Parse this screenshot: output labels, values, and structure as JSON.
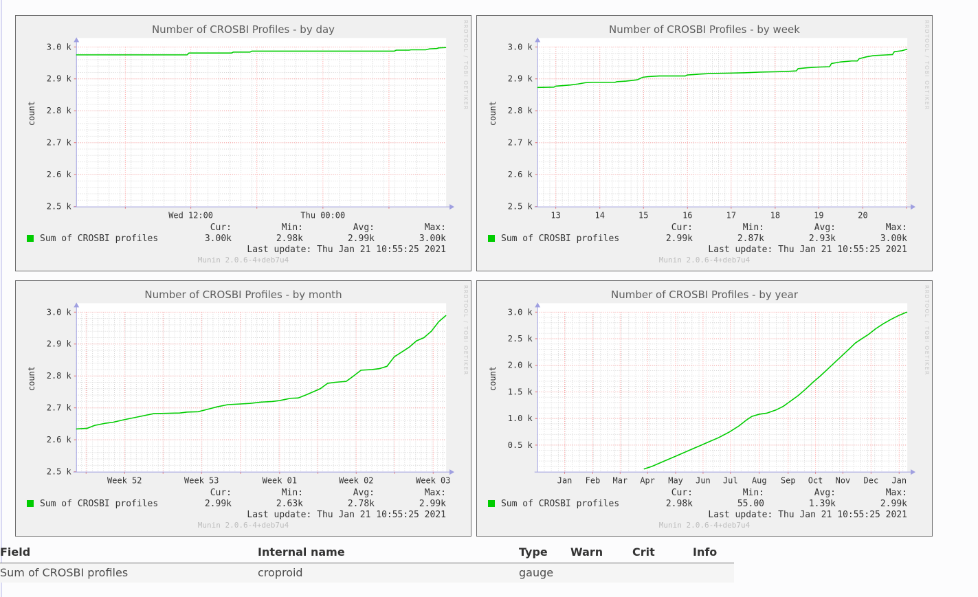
{
  "page": {
    "background": "#fcfcfd",
    "accent_green": "#00cc00",
    "grid_red": "#ff9b9b",
    "grid_gray": "#d4d4d4",
    "axis_color": "#9f9fe0",
    "link_blue": "#3b6ea5"
  },
  "legend_headers": [
    "Cur:",
    "Min:",
    "Avg:",
    "Max:"
  ],
  "chart_data": [
    {
      "type": "line",
      "id": "by-day",
      "title": "Number of CROSBI Profiles - by day",
      "ylabel": "count",
      "watermark": "RRDTOOL / TOBI OETIKER",
      "footer": "Munin 2.0.6-4+deb7u4",
      "ylim": [
        2.5,
        3.0
      ],
      "y_ticks": [
        {
          "v": 3.0,
          "label": "3.0 k"
        },
        {
          "v": 2.9,
          "label": "2.9 k"
        },
        {
          "v": 2.8,
          "label": "2.8 k"
        },
        {
          "v": 2.7,
          "label": "2.7 k"
        },
        {
          "v": 2.6,
          "label": "2.6 k"
        },
        {
          "v": 2.5,
          "label": "2.5 k"
        }
      ],
      "y_minor_step": 0.02,
      "x_ticks": [
        {
          "f": 0.31,
          "label": "Wed 12:00"
        },
        {
          "f": 0.667,
          "label": "Thu 00:00"
        }
      ],
      "x_grid": [
        0.133,
        0.31,
        0.4885,
        0.667,
        0.8455
      ],
      "x_minor_step": 0.0297,
      "series": [
        {
          "name": "Sum of CROSBI profiles",
          "color": "#00cc00",
          "points": [
            [
              0,
              2.975
            ],
            [
              0.3,
              2.975
            ],
            [
              0.305,
              2.981
            ],
            [
              0.42,
              2.981
            ],
            [
              0.425,
              2.984
            ],
            [
              0.47,
              2.984
            ],
            [
              0.475,
              2.987
            ],
            [
              0.86,
              2.987
            ],
            [
              0.865,
              2.99
            ],
            [
              0.9,
              2.99
            ],
            [
              0.905,
              2.991
            ],
            [
              0.945,
              2.991
            ],
            [
              0.955,
              2.994
            ],
            [
              0.975,
              2.995
            ],
            [
              0.98,
              2.997
            ],
            [
              1,
              2.998
            ]
          ]
        }
      ],
      "stats": {
        "cur": "3.00k",
        "min": "2.98k",
        "avg": "2.99k",
        "max": "3.00k"
      },
      "last_update": "Last update: Thu Jan 21 10:55:25 2021"
    },
    {
      "type": "line",
      "id": "by-week",
      "title": "Number of CROSBI Profiles - by week",
      "ylabel": "count",
      "watermark": "RRDTOOL / TOBI OETIKER",
      "footer": "Munin 2.0.6-4+deb7u4",
      "ylim": [
        2.5,
        3.0
      ],
      "y_ticks": [
        {
          "v": 3.0,
          "label": "3.0 k"
        },
        {
          "v": 2.9,
          "label": "2.9 k"
        },
        {
          "v": 2.8,
          "label": "2.8 k"
        },
        {
          "v": 2.7,
          "label": "2.7 k"
        },
        {
          "v": 2.6,
          "label": "2.6 k"
        },
        {
          "v": 2.5,
          "label": "2.5 k"
        }
      ],
      "y_minor_step": 0.02,
      "x_ticks": [
        {
          "f": 0.05,
          "label": "13"
        },
        {
          "f": 0.169,
          "label": "14"
        },
        {
          "f": 0.287,
          "label": "15"
        },
        {
          "f": 0.406,
          "label": "16"
        },
        {
          "f": 0.524,
          "label": "17"
        },
        {
          "f": 0.643,
          "label": "18"
        },
        {
          "f": 0.761,
          "label": "19"
        },
        {
          "f": 0.88,
          "label": "20"
        }
      ],
      "x_grid": [
        0.05,
        0.169,
        0.287,
        0.406,
        0.524,
        0.643,
        0.761,
        0.88,
        0.998
      ],
      "x_minor_step": 0.0169,
      "series": [
        {
          "name": "Sum of CROSBI profiles",
          "color": "#00cc00",
          "points": [
            [
              0,
              2.873
            ],
            [
              0.045,
              2.874
            ],
            [
              0.05,
              2.877
            ],
            [
              0.09,
              2.881
            ],
            [
              0.11,
              2.884
            ],
            [
              0.13,
              2.888
            ],
            [
              0.15,
              2.889
            ],
            [
              0.21,
              2.889
            ],
            [
              0.215,
              2.891
            ],
            [
              0.24,
              2.893
            ],
            [
              0.27,
              2.897
            ],
            [
              0.285,
              2.905
            ],
            [
              0.3,
              2.907
            ],
            [
              0.33,
              2.909
            ],
            [
              0.4,
              2.909
            ],
            [
              0.405,
              2.912
            ],
            [
              0.44,
              2.915
            ],
            [
              0.47,
              2.917
            ],
            [
              0.52,
              2.918
            ],
            [
              0.56,
              2.919
            ],
            [
              0.6,
              2.921
            ],
            [
              0.64,
              2.922
            ],
            [
              0.67,
              2.923
            ],
            [
              0.7,
              2.925
            ],
            [
              0.705,
              2.932
            ],
            [
              0.73,
              2.935
            ],
            [
              0.76,
              2.937
            ],
            [
              0.79,
              2.938
            ],
            [
              0.795,
              2.948
            ],
            [
              0.82,
              2.953
            ],
            [
              0.85,
              2.956
            ],
            [
              0.865,
              2.956
            ],
            [
              0.87,
              2.963
            ],
            [
              0.89,
              2.969
            ],
            [
              0.91,
              2.973
            ],
            [
              0.945,
              2.975
            ],
            [
              0.96,
              2.976
            ],
            [
              0.965,
              2.985
            ],
            [
              0.985,
              2.988
            ],
            [
              1,
              2.993
            ]
          ]
        }
      ],
      "stats": {
        "cur": "2.99k",
        "min": "2.87k",
        "avg": "2.93k",
        "max": "3.00k"
      },
      "last_update": "Last update: Thu Jan 21 10:55:25 2021"
    },
    {
      "type": "line",
      "id": "by-month",
      "title": "Number of CROSBI Profiles - by month",
      "ylabel": "count",
      "watermark": "RRDTOOL / TOBI OETIKER",
      "footer": "Munin 2.0.6-4+deb7u4",
      "ylim": [
        2.5,
        3.0
      ],
      "y_ticks": [
        {
          "v": 3.0,
          "label": "3.0 k"
        },
        {
          "v": 2.9,
          "label": "2.9 k"
        },
        {
          "v": 2.8,
          "label": "2.8 k"
        },
        {
          "v": 2.7,
          "label": "2.7 k"
        },
        {
          "v": 2.6,
          "label": "2.6 k"
        },
        {
          "v": 2.5,
          "label": "2.5 k"
        }
      ],
      "y_minor_step": 0.02,
      "x_ticks": [
        {
          "f": 0.131,
          "label": "Week 52"
        },
        {
          "f": 0.339,
          "label": "Week 53"
        },
        {
          "f": 0.55,
          "label": "Week 01"
        },
        {
          "f": 0.757,
          "label": "Week 02"
        },
        {
          "f": 0.965,
          "label": "Week 03"
        }
      ],
      "x_grid": [
        0.027,
        0.131,
        0.235,
        0.339,
        0.4445,
        0.55,
        0.6535,
        0.757,
        0.861,
        0.965
      ],
      "x_minor_step": 0.0148,
      "series": [
        {
          "name": "Sum of CROSBI profiles",
          "color": "#00cc00",
          "points": [
            [
              0,
              2.634
            ],
            [
              0.03,
              2.636
            ],
            [
              0.05,
              2.645
            ],
            [
              0.08,
              2.652
            ],
            [
              0.1,
              2.655
            ],
            [
              0.13,
              2.663
            ],
            [
              0.16,
              2.67
            ],
            [
              0.18,
              2.675
            ],
            [
              0.21,
              2.682
            ],
            [
              0.25,
              2.683
            ],
            [
              0.28,
              2.684
            ],
            [
              0.3,
              2.687
            ],
            [
              0.33,
              2.688
            ],
            [
              0.36,
              2.697
            ],
            [
              0.38,
              2.703
            ],
            [
              0.41,
              2.71
            ],
            [
              0.44,
              2.712
            ],
            [
              0.47,
              2.714
            ],
            [
              0.5,
              2.718
            ],
            [
              0.53,
              2.72
            ],
            [
              0.55,
              2.723
            ],
            [
              0.58,
              2.73
            ],
            [
              0.6,
              2.731
            ],
            [
              0.62,
              2.74
            ],
            [
              0.64,
              2.75
            ],
            [
              0.66,
              2.76
            ],
            [
              0.68,
              2.777
            ],
            [
              0.7,
              2.78
            ],
            [
              0.73,
              2.783
            ],
            [
              0.75,
              2.8
            ],
            [
              0.77,
              2.818
            ],
            [
              0.8,
              2.82
            ],
            [
              0.82,
              2.823
            ],
            [
              0.84,
              2.83
            ],
            [
              0.86,
              2.86
            ],
            [
              0.88,
              2.875
            ],
            [
              0.9,
              2.89
            ],
            [
              0.92,
              2.91
            ],
            [
              0.94,
              2.92
            ],
            [
              0.95,
              2.93
            ],
            [
              0.96,
              2.94
            ],
            [
              0.98,
              2.97
            ],
            [
              1,
              2.99
            ]
          ]
        }
      ],
      "stats": {
        "cur": "2.99k",
        "min": "2.63k",
        "avg": "2.78k",
        "max": "2.99k"
      },
      "last_update": "Last update: Thu Jan 21 10:55:25 2021"
    },
    {
      "type": "line",
      "id": "by-year",
      "title": "Number of CROSBI Profiles - by year",
      "ylabel": "count",
      "watermark": "RRDTOOL / TOBI OETIKER",
      "footer": "Munin 2.0.6-4+deb7u4",
      "ylim": [
        0,
        3.0
      ],
      "y_ticks": [
        {
          "v": 3.0,
          "label": "3.0 k"
        },
        {
          "v": 2.5,
          "label": "2.5 k"
        },
        {
          "v": 2.0,
          "label": "2.0 k"
        },
        {
          "v": 1.5,
          "label": "1.5 k"
        },
        {
          "v": 1.0,
          "label": "1.0 k"
        },
        {
          "v": 0.5,
          "label": "0.5 k"
        }
      ],
      "y_minor_step": 0.1,
      "x_ticks": [
        {
          "f": 0.074,
          "label": "Jan"
        },
        {
          "f": 0.15,
          "label": "Feb"
        },
        {
          "f": 0.224,
          "label": "Mar"
        },
        {
          "f": 0.298,
          "label": "Apr"
        },
        {
          "f": 0.374,
          "label": "May"
        },
        {
          "f": 0.448,
          "label": "Jun"
        },
        {
          "f": 0.522,
          "label": "Jul"
        },
        {
          "f": 0.6,
          "label": "Aug"
        },
        {
          "f": 0.678,
          "label": "Sep"
        },
        {
          "f": 0.752,
          "label": "Oct"
        },
        {
          "f": 0.826,
          "label": "Nov"
        },
        {
          "f": 0.902,
          "label": "Dec"
        },
        {
          "f": 0.978,
          "label": "Jan"
        }
      ],
      "x_grid": [
        0.074,
        0.15,
        0.224,
        0.298,
        0.374,
        0.448,
        0.522,
        0.6,
        0.678,
        0.752,
        0.826,
        0.902,
        0.978
      ],
      "x_minor_step": 0.019,
      "series": [
        {
          "name": "Sum of CROSBI profiles",
          "color": "#00cc00",
          "points": [
            [
              0.288,
              0.05
            ],
            [
              0.31,
              0.1
            ],
            [
              0.34,
              0.19
            ],
            [
              0.37,
              0.28
            ],
            [
              0.4,
              0.37
            ],
            [
              0.43,
              0.46
            ],
            [
              0.46,
              0.55
            ],
            [
              0.49,
              0.64
            ],
            [
              0.52,
              0.75
            ],
            [
              0.545,
              0.86
            ],
            [
              0.565,
              0.97
            ],
            [
              0.58,
              1.04
            ],
            [
              0.6,
              1.08
            ],
            [
              0.62,
              1.1
            ],
            [
              0.645,
              1.16
            ],
            [
              0.665,
              1.23
            ],
            [
              0.685,
              1.33
            ],
            [
              0.705,
              1.43
            ],
            [
              0.725,
              1.55
            ],
            [
              0.745,
              1.68
            ],
            [
              0.765,
              1.8
            ],
            [
              0.785,
              1.93
            ],
            [
              0.805,
              2.06
            ],
            [
              0.825,
              2.19
            ],
            [
              0.845,
              2.32
            ],
            [
              0.86,
              2.42
            ],
            [
              0.875,
              2.49
            ],
            [
              0.895,
              2.58
            ],
            [
              0.915,
              2.69
            ],
            [
              0.935,
              2.78
            ],
            [
              0.955,
              2.86
            ],
            [
              0.975,
              2.93
            ],
            [
              0.995,
              2.99
            ],
            [
              1,
              3.0
            ]
          ]
        }
      ],
      "stats": {
        "cur": "2.98k",
        "min": "55.00",
        "avg": "1.39k",
        "max": "2.99k"
      },
      "last_update": "Last update: Thu Jan 21 10:55:25 2021"
    }
  ],
  "table": {
    "headers": [
      "Field",
      "Internal name",
      "Type",
      "Warn",
      "Crit",
      "Info"
    ],
    "rows": [
      [
        "Sum of CROSBI profiles",
        "croproid",
        "gauge",
        "",
        "",
        ""
      ]
    ]
  }
}
